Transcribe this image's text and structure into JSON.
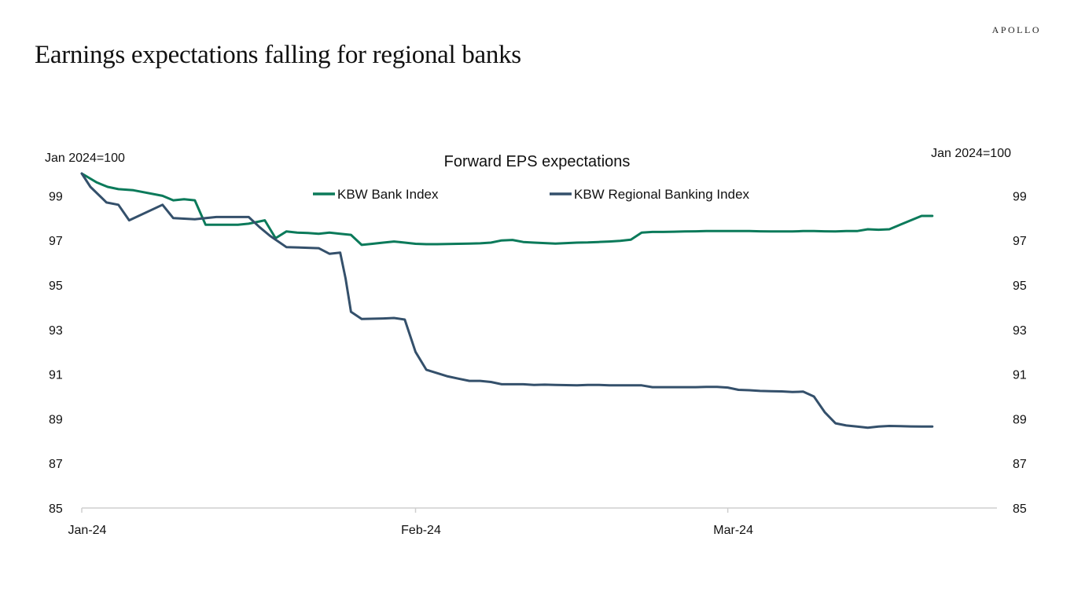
{
  "brand": "APOLLO",
  "title": "Earnings expectations falling for regional banks",
  "colors": {
    "bank": "#0b7a5a",
    "regional": "#34506b",
    "axis": "#cfcfcf"
  },
  "chart_data": {
    "type": "line",
    "title": "Forward EPS expectations",
    "ylabel_left": "Jan 2024=100",
    "ylabel_right": "Jan 2024=100",
    "ylim": [
      85,
      100
    ],
    "yticks": [
      85,
      87,
      89,
      91,
      93,
      95,
      97,
      99
    ],
    "xlim": [
      0,
      85
    ],
    "xticks": [
      {
        "label": "Jan-24",
        "x": 0
      },
      {
        "label": "Feb-24",
        "x": 31
      },
      {
        "label": "Mar-24",
        "x": 60
      }
    ],
    "legend_position": "top-center",
    "series": [
      {
        "name": "KBW Bank Index",
        "color": "#0b7a5a",
        "x": [
          0,
          1.4,
          2.4,
          3.4,
          4.8,
          7.5,
          8.5,
          9.5,
          10.5,
          11.5,
          12.5,
          14,
          14.5,
          15.5,
          17,
          18,
          19,
          20,
          21,
          22,
          23,
          24,
          25,
          26,
          27,
          28,
          29,
          30,
          31,
          32,
          33,
          34,
          35,
          36,
          37,
          38,
          39,
          40,
          41,
          42,
          43,
          44,
          45,
          46,
          47,
          48,
          49,
          50,
          51,
          52,
          53,
          54,
          55,
          56,
          57,
          58,
          59,
          60,
          61,
          62,
          63,
          64,
          65,
          66,
          67,
          68,
          69,
          70,
          71,
          72,
          73,
          74,
          75,
          76,
          77,
          78,
          79
        ],
        "values": [
          100,
          99.6,
          99.4,
          99.3,
          99.25,
          99.0,
          98.8,
          98.85,
          98.8,
          97.7,
          97.7,
          97.7,
          97.7,
          97.75,
          97.9,
          97.1,
          97.4,
          97.35,
          97.33,
          97.3,
          97.35,
          97.3,
          97.25,
          96.8,
          96.85,
          96.9,
          96.95,
          96.9,
          96.85,
          96.83,
          96.83,
          96.84,
          96.85,
          96.86,
          96.87,
          96.9,
          97.0,
          97.02,
          96.93,
          96.9,
          96.88,
          96.86,
          96.88,
          96.9,
          96.91,
          96.93,
          96.95,
          96.98,
          97.03,
          97.35,
          97.38,
          97.38,
          97.39,
          97.4,
          97.41,
          97.42,
          97.42,
          97.42,
          97.42,
          97.42,
          97.41,
          97.4,
          97.4,
          97.4,
          97.42,
          97.42,
          97.41,
          97.4,
          97.42,
          97.42,
          97.5,
          97.48,
          97.5,
          97.7,
          97.9,
          98.1,
          98.1
        ]
      },
      {
        "name": "KBW Regional Banking Index",
        "color": "#34506b",
        "x": [
          0,
          0.8,
          2.3,
          3.4,
          4.4,
          7.5,
          8.5,
          10.5,
          12.5,
          14,
          15.5,
          16.5,
          17.5,
          19,
          22,
          23,
          24,
          24.5,
          25,
          26,
          28,
          29,
          30,
          31,
          32,
          33,
          34,
          35,
          36,
          37,
          38,
          39,
          40,
          41,
          42,
          43,
          44,
          45,
          46,
          47,
          48,
          49,
          50,
          51,
          52,
          53,
          54,
          55,
          56,
          57,
          58,
          59,
          60,
          61,
          62,
          63,
          64,
          65,
          66,
          67,
          68,
          69,
          70,
          71,
          72,
          73,
          74,
          75,
          76,
          77,
          78,
          79
        ],
        "values": [
          100,
          99.4,
          98.7,
          98.6,
          97.9,
          98.6,
          98.0,
          97.95,
          98.05,
          98.05,
          98.05,
          97.6,
          97.2,
          96.7,
          96.65,
          96.4,
          96.45,
          95.3,
          93.8,
          93.48,
          93.5,
          93.52,
          93.45,
          92.0,
          91.2,
          91.05,
          90.9,
          90.8,
          90.7,
          90.7,
          90.65,
          90.55,
          90.55,
          90.55,
          90.52,
          90.53,
          90.52,
          90.51,
          90.5,
          90.52,
          90.52,
          90.5,
          90.5,
          90.5,
          90.5,
          90.42,
          90.42,
          90.42,
          90.42,
          90.42,
          90.43,
          90.43,
          90.4,
          90.3,
          90.28,
          90.25,
          90.24,
          90.23,
          90.2,
          90.22,
          90.0,
          89.3,
          88.8,
          88.7,
          88.65,
          88.6,
          88.65,
          88.68,
          88.67,
          88.66,
          88.65,
          88.65
        ]
      }
    ]
  }
}
